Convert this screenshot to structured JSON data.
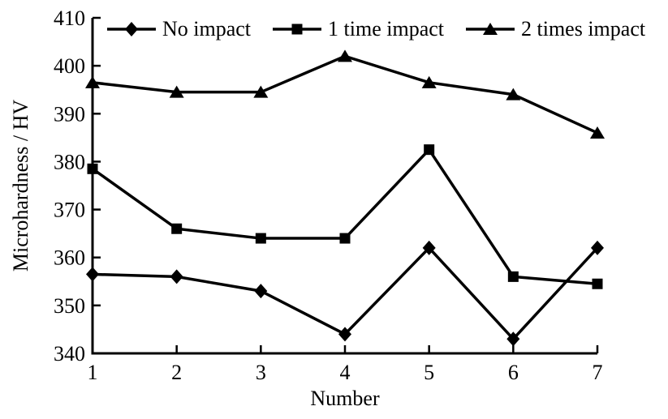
{
  "chart_data": {
    "type": "line",
    "title": "",
    "xlabel": "Number",
    "ylabel": "Microhardness / HV",
    "x": [
      1,
      2,
      3,
      4,
      5,
      6,
      7
    ],
    "series": [
      {
        "name": "No impact",
        "marker": "diamond",
        "values": [
          356.5,
          356,
          353,
          344,
          362,
          343,
          362
        ]
      },
      {
        "name": "1 time impact",
        "marker": "square",
        "values": [
          378.5,
          366,
          364,
          364,
          382.5,
          356,
          354.5
        ]
      },
      {
        "name": "2 times impact",
        "marker": "triangle",
        "values": [
          396.5,
          394.5,
          394.5,
          402,
          396.5,
          394,
          386
        ]
      }
    ],
    "xlim": [
      1,
      7
    ],
    "ylim": [
      340,
      410
    ],
    "xticks": [
      1,
      2,
      3,
      4,
      5,
      6,
      7
    ],
    "yticks": [
      340,
      350,
      360,
      370,
      380,
      390,
      400,
      410
    ],
    "legend_position": "top",
    "grid": false,
    "line_color": "#000000",
    "background": "#ffffff"
  }
}
